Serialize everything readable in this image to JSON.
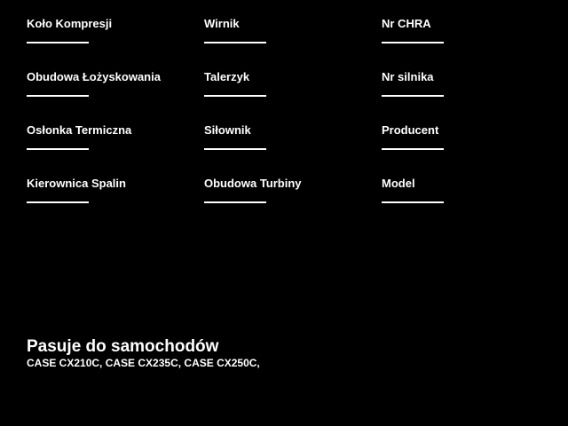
{
  "colors": {
    "background": "#000000",
    "text": "#ffffff",
    "underline": "#ffffff"
  },
  "form": {
    "fields": [
      {
        "label": "Koło Kompresji"
      },
      {
        "label": "Wirnik"
      },
      {
        "label": "Nr CHRA"
      },
      {
        "label": "Obudowa Łożyskowania"
      },
      {
        "label": "Talerzyk"
      },
      {
        "label": "Nr silnika"
      },
      {
        "label": "Osłonka Termiczna"
      },
      {
        "label": "Siłownik"
      },
      {
        "label": "Producent"
      },
      {
        "label": "Kierownica Spalin"
      },
      {
        "label": "Obudowa Turbiny"
      },
      {
        "label": "Model"
      }
    ]
  },
  "footer": {
    "heading": "Pasuje do samochodów",
    "vehicles": "CASE CX210C, CASE CX235C, CASE CX250C,"
  }
}
